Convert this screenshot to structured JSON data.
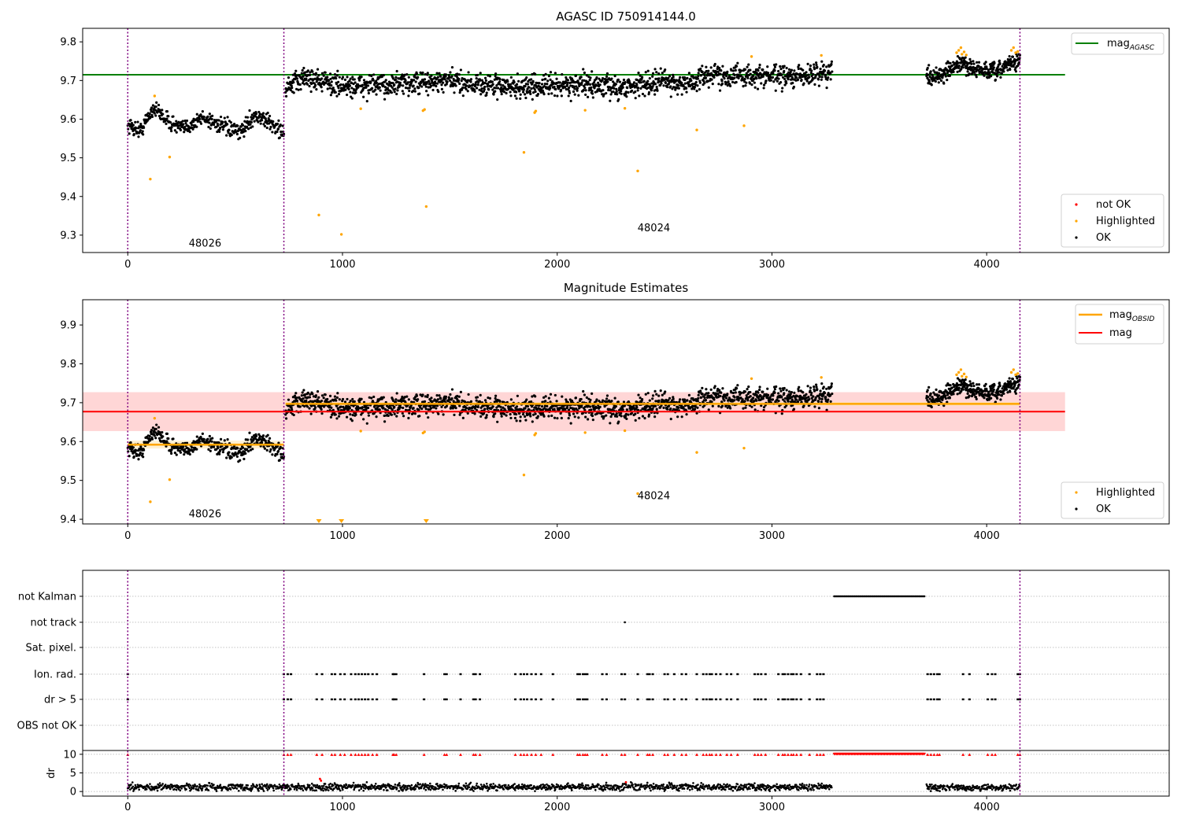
{
  "colors": {
    "ok": "#000000",
    "highlighted": "#ffa500",
    "not_ok": "#ff0000",
    "agasc_line": "#008000",
    "mag_line": "#ff0000",
    "mag_band": "#ffd6d6",
    "mag_obsid_line": "#ffa500",
    "obsid_divider": "#800080",
    "grid": "#b0b0b0"
  },
  "chart_data": [
    {
      "type": "scatter",
      "title": "AGASC ID 750914144.0",
      "xlim": [
        -210,
        4850
      ],
      "ylim": [
        9.255,
        9.835
      ],
      "xticks": [
        0,
        1000,
        2000,
        3000,
        4000
      ],
      "yticks": [
        9.3,
        9.4,
        9.5,
        9.6,
        9.7,
        9.8
      ],
      "obsid_boundaries": [
        0,
        727,
        4155
      ],
      "obsid_labels": [
        {
          "text": "48026",
          "x": 360,
          "y": 9.27
        },
        {
          "text": "48024",
          "x": 2450,
          "y": 9.31
        }
      ],
      "reference_lines": [
        {
          "name": "mag_AGASC",
          "y": 9.715,
          "x_range": [
            -210,
            4365
          ]
        }
      ],
      "legend_upper": {
        "entries": [
          {
            "base": "mag",
            "sub": "AGASC"
          }
        ]
      },
      "legend_lower": {
        "entries": [
          "not OK",
          "Highlighted",
          "OK"
        ]
      },
      "series": [
        {
          "name": "OK",
          "segments": [
            {
              "x_start": 0,
              "x_end": 727,
              "knots": [
                [
                  0,
                  9.585
                ],
                [
                  60,
                  9.57
                ],
                [
                  120,
                  9.63
                ],
                [
                  200,
                  9.59
                ],
                [
                  260,
                  9.575
                ],
                [
                  350,
                  9.605
                ],
                [
                  450,
                  9.58
                ],
                [
                  520,
                  9.565
                ],
                [
                  590,
                  9.61
                ],
                [
                  650,
                  9.595
                ],
                [
                  727,
                  9.565
                ]
              ],
              "noise": 0.01,
              "n": 420
            },
            {
              "x_start": 735,
              "x_end": 3280,
              "knots": [
                [
                  735,
                  9.675
                ],
                [
                  820,
                  9.71
                ],
                [
                  1000,
                  9.685
                ],
                [
                  1200,
                  9.688
                ],
                [
                  1500,
                  9.698
                ],
                [
                  1800,
                  9.682
                ],
                [
                  2100,
                  9.69
                ],
                [
                  2300,
                  9.682
                ],
                [
                  2500,
                  9.7
                ],
                [
                  2600,
                  9.688
                ],
                [
                  2700,
                  9.715
                ],
                [
                  2900,
                  9.712
                ],
                [
                  3100,
                  9.708
                ],
                [
                  3280,
                  9.725
                ]
              ],
              "noise": 0.014,
              "n": 1650
            },
            {
              "x_start": 3720,
              "x_end": 4155,
              "knots": [
                [
                  3720,
                  9.712
                ],
                [
                  3800,
                  9.715
                ],
                [
                  3880,
                  9.745
                ],
                [
                  3950,
                  9.728
                ],
                [
                  4050,
                  9.72
                ],
                [
                  4100,
                  9.745
                ],
                [
                  4155,
                  9.75
                ]
              ],
              "noise": 0.011,
              "n": 330
            }
          ]
        },
        {
          "name": "Highlighted",
          "points": [
            [
              105,
              9.445
            ],
            [
              125,
              9.66
            ],
            [
              195,
              9.502
            ],
            [
              890,
              9.352
            ],
            [
              995,
              9.302
            ],
            [
              1085,
              9.627
            ],
            [
              1375,
              9.622
            ],
            [
              1382,
              9.625
            ],
            [
              1390,
              9.374
            ],
            [
              1845,
              9.514
            ],
            [
              1895,
              9.617
            ],
            [
              1900,
              9.621
            ],
            [
              2130,
              9.623
            ],
            [
              2315,
              9.628
            ],
            [
              2375,
              9.466
            ],
            [
              2650,
              9.572
            ],
            [
              2870,
              9.583
            ],
            [
              2905,
              9.762
            ],
            [
              3230,
              9.765
            ],
            [
              3860,
              9.772
            ],
            [
              3870,
              9.778
            ],
            [
              3880,
              9.785
            ],
            [
              3885,
              9.768
            ],
            [
              3895,
              9.774
            ],
            [
              3905,
              9.766
            ],
            [
              4115,
              9.778
            ],
            [
              4125,
              9.785
            ],
            [
              4135,
              9.772
            ],
            [
              4145,
              9.775
            ]
          ]
        },
        {
          "name": "not OK",
          "points": []
        }
      ]
    },
    {
      "type": "scatter",
      "title": "Magnitude Estimates",
      "xlim": [
        -210,
        4850
      ],
      "ylim": [
        9.388,
        9.965
      ],
      "xticks": [
        0,
        1000,
        2000,
        3000,
        4000
      ],
      "yticks": [
        9.4,
        9.5,
        9.6,
        9.7,
        9.8,
        9.9
      ],
      "obsid_boundaries": [
        0,
        727,
        4155
      ],
      "obsid_labels": [
        {
          "text": "48026",
          "x": 360,
          "y": 9.405
        },
        {
          "text": "48024",
          "x": 2450,
          "y": 9.452
        }
      ],
      "mag": {
        "value": 9.677,
        "band": [
          9.627,
          9.727
        ],
        "x_range": [
          -210,
          4365
        ]
      },
      "mag_obsid": [
        {
          "x_range": [
            0,
            727
          ],
          "value": 9.592,
          "band": [
            9.582,
            9.602
          ]
        },
        {
          "x_range": [
            735,
            4155
          ],
          "value": 9.697,
          "band": [
            9.692,
            9.702
          ]
        }
      ],
      "clipped_markers": [
        890,
        995,
        1390
      ],
      "legend_upper": {
        "entries": [
          {
            "base": "mag",
            "sub": "OBSID"
          },
          {
            "base": "mag",
            "sub": ""
          }
        ]
      },
      "legend_lower": {
        "entries": [
          "Highlighted",
          "OK"
        ]
      }
    },
    {
      "type": "scatter",
      "title": "",
      "xlim": [
        -210,
        4850
      ],
      "xticks": [
        0,
        1000,
        2000,
        3000,
        4000
      ],
      "flag_categories": [
        "not Kalman",
        "not track",
        "Sat. pixel.",
        "Ion. rad.",
        "dr > 5",
        "OBS not OK"
      ],
      "not_kalman_range": [
        3290,
        3710
      ],
      "not_track_points": [
        2315
      ],
      "ion_rad_clusters": [
        0,
        727,
        745,
        760,
        880,
        905,
        950,
        965,
        990,
        1010,
        1040,
        1060,
        1075,
        1090,
        1105,
        1120,
        1140,
        1160,
        1235,
        1240,
        1250,
        1380,
        1475,
        1485,
        1550,
        1610,
        1620,
        1640,
        1805,
        1830,
        1845,
        1860,
        1880,
        1900,
        1925,
        1980,
        2095,
        2105,
        2120,
        2130,
        2140,
        2210,
        2230,
        2300,
        2315,
        2375,
        2420,
        2430,
        2445,
        2500,
        2515,
        2545,
        2580,
        2600,
        2650,
        2680,
        2695,
        2710,
        2720,
        2740,
        2760,
        2790,
        2810,
        2840,
        2920,
        2935,
        2950,
        2970,
        3030,
        3050,
        3060,
        3075,
        3090,
        3100,
        3115,
        3135,
        3175,
        3210,
        3225,
        3240,
        3725,
        3740,
        3755,
        3770,
        3780,
        3890,
        3920,
        4005,
        4025,
        4040,
        4145,
        4155
      ],
      "dr_ylim": [
        -0.6,
        10.6
      ],
      "dr_yticks": [
        0,
        5,
        10
      ],
      "dr_ylabel": "dr",
      "dr_segments": [
        {
          "x_start": 0,
          "x_end": 3280,
          "mean": 1.2,
          "noise": 0.45
        },
        {
          "x_start": 3720,
          "x_end": 4155,
          "mean": 1.1,
          "noise": 0.4
        }
      ],
      "dr_outliers": [
        [
          895,
          3.4
        ],
        [
          900,
          2.9
        ],
        [
          2320,
          2.5
        ]
      ],
      "dr_clipped_range": [
        3290,
        3710
      ]
    }
  ]
}
